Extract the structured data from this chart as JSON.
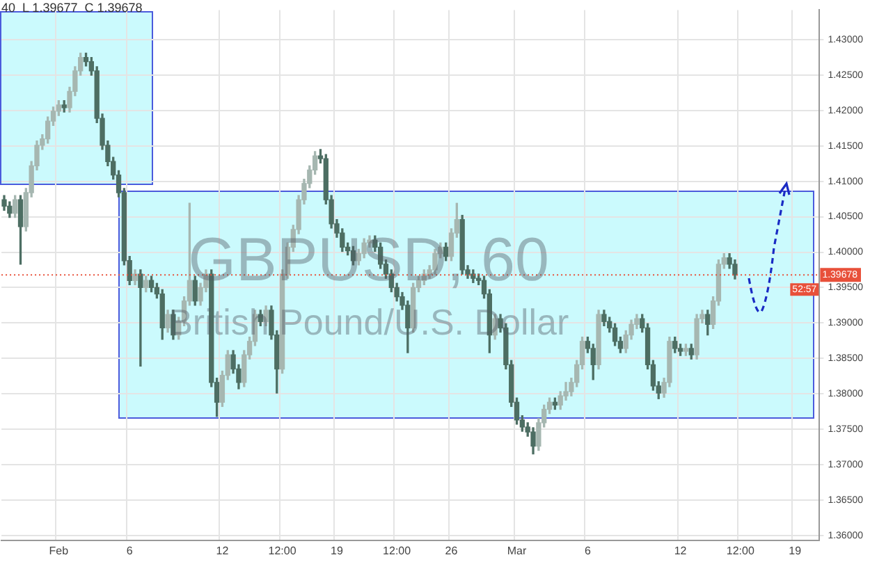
{
  "chart_data": {
    "type": "candlestick",
    "title": "GBPUSD, 60",
    "subtitle": "British Pound/U.S. Dollar",
    "categories": [
      null,
      null,
      null,
      null,
      null,
      null,
      null,
      null,
      null,
      null,
      "Feb",
      null,
      null,
      null,
      null,
      null,
      null,
      null,
      null,
      null,
      null,
      null,
      null,
      "6",
      null,
      null,
      null,
      null,
      null,
      null,
      null,
      null,
      null,
      null,
      null,
      null,
      null,
      null,
      null,
      null,
      "12",
      null,
      null,
      null,
      null,
      null,
      null,
      null,
      null,
      null,
      null,
      "12:00",
      null,
      null,
      null,
      null,
      null,
      null,
      null,
      null,
      null,
      "19",
      null,
      null,
      null,
      null,
      null,
      null,
      null,
      null,
      null,
      null,
      "12:00",
      null,
      null,
      null,
      null,
      null,
      null,
      null,
      null,
      null,
      "26",
      null,
      null,
      null,
      null,
      null,
      null,
      null,
      null,
      null,
      null,
      null,
      "Mar",
      null,
      null,
      null,
      null,
      null,
      null,
      null,
      null,
      null,
      null,
      null,
      null,
      "6",
      null,
      null,
      null,
      null,
      null,
      null,
      null,
      null,
      null,
      null,
      null,
      null,
      null,
      null,
      null,
      null,
      "12",
      null,
      null,
      null,
      null,
      null,
      null,
      null,
      null,
      null,
      null,
      "12:00",
      null,
      null,
      null,
      null,
      null,
      null,
      null,
      null,
      null,
      "19",
      null,
      null,
      null,
      null
    ],
    "colors": [
      "#4d6e63",
      "#4d6e63",
      "#a6b7b1",
      "#4d6e63",
      "#a6b7b1",
      "#a6b7b1",
      "#a6b7b1",
      "#a6b7b1",
      "#a6b7b1",
      "#a6b7b1",
      "#a6b7b1",
      "#4d6e63",
      "#a6b7b1",
      "#a6b7b1",
      "#a6b7b1",
      "#4d6e63",
      "#4d6e63",
      "#4d6e63",
      "#4d6e63",
      "#4d6e63",
      "#4d6e63",
      "#4d6e63",
      "#4d6e63",
      "#4d6e63",
      "#a6b7b1",
      "#4d6e63",
      "#a6b7b1",
      "#4d6e63",
      "#4d6e63",
      "#4d6e63",
      "#a6b7b1",
      "#4d6e63",
      "#a6b7b1",
      "#a6b7b1",
      "#a6b7b1",
      "#4d6e63",
      "#a6b7b1",
      "#a6b7b1",
      "#4d6e63",
      "#4d6e63",
      "#a6b7b1",
      "#a6b7b1",
      "#4d6e63",
      "#4d6e63",
      "#a6b7b1",
      "#a6b7b1",
      "#a6b7b1",
      "#4d6e63",
      "#a6b7b1",
      "#4d6e63",
      "#4d6e63",
      "#a6b7b1",
      "#a6b7b1",
      "#a6b7b1",
      "#a6b7b1",
      "#a6b7b1",
      "#a6b7b1",
      "#a6b7b1",
      "#4d6e63",
      "#4d6e63",
      "#4d6e63",
      "#4d6e63",
      "#4d6e63",
      "#4d6e63",
      "#4d6e63",
      "#a6b7b1",
      "#a6b7b1",
      "#a6b7b1",
      "#4d6e63",
      "#4d6e63",
      "#4d6e63",
      "#4d6e63",
      "#4d6e63",
      "#4d6e63",
      "#4d6e63",
      "#a6b7b1",
      "#a6b7b1",
      "#a6b7b1",
      "#a6b7b1",
      "#a6b7b1",
      "#a6b7b1",
      "#4d6e63",
      "#a6b7b1",
      "#a6b7b1",
      "#4d6e63",
      "#4d6e63",
      "#4d6e63",
      "#4d6e63",
      "#4d6e63",
      "#4d6e63",
      "#a6b7b1",
      "#4d6e63",
      "#4d6e63",
      "#4d6e63",
      "#4d6e63",
      "#4d6e63",
      "#4d6e63",
      "#4d6e63",
      "#a6b7b1",
      "#a6b7b1",
      "#a6b7b1",
      "#4d6e63",
      "#a6b7b1",
      "#a6b7b1",
      "#a6b7b1",
      "#a6b7b1",
      "#a6b7b1",
      "#4d6e63",
      "#4d6e63",
      "#a6b7b1",
      "#4d6e63",
      "#4d6e63",
      "#4d6e63",
      "#4d6e63",
      "#a6b7b1",
      "#a6b7b1",
      "#a6b7b1",
      "#4d6e63",
      "#4d6e63",
      "#4d6e63",
      "#4d6e63",
      "#a6b7b1",
      "#a6b7b1",
      "#4d6e63",
      "#4d6e63",
      "#a6b7b1",
      "#4d6e63",
      "#a6b7b1",
      "#a6b7b1",
      "#4d6e63",
      "#a6b7b1",
      "#a6b7b1",
      "#a6b7b1",
      "#4d6e63",
      "#4d6e63",
      null,
      null,
      null,
      null,
      null,
      null,
      null,
      null,
      null,
      null,
      null,
      null,
      null,
      null,
      null
    ],
    "ohlc": [
      [
        1.4074,
        1.408,
        1.4059,
        1.4065
      ],
      [
        1.4065,
        1.4071,
        1.4049,
        1.4055
      ],
      [
        1.4055,
        1.408,
        1.4049,
        1.4074
      ],
      [
        1.4074,
        1.408,
        1.3983,
        1.4036
      ],
      [
        1.4036,
        1.409,
        1.403,
        1.4084
      ],
      [
        1.4084,
        1.4128,
        1.4078,
        1.4122
      ],
      [
        1.4122,
        1.4157,
        1.4116,
        1.4151
      ],
      [
        1.4151,
        1.4166,
        1.4145,
        1.416
      ],
      [
        1.416,
        1.4191,
        1.4154,
        1.4185
      ],
      [
        1.4185,
        1.4205,
        1.4179,
        1.4199
      ],
      [
        1.4199,
        1.4214,
        1.4193,
        1.4208
      ],
      [
        1.4208,
        1.4214,
        1.4198,
        1.4204
      ],
      [
        1.4204,
        1.4233,
        1.4198,
        1.4227
      ],
      [
        1.4227,
        1.4262,
        1.4221,
        1.4256
      ],
      [
        1.4256,
        1.4281,
        1.425,
        1.4275
      ],
      [
        1.4275,
        1.4281,
        1.4263,
        1.4269
      ],
      [
        1.4269,
        1.4275,
        1.425,
        1.4256
      ],
      [
        1.4256,
        1.4262,
        1.4183,
        1.4189
      ],
      [
        1.4189,
        1.4195,
        1.4145,
        1.4151
      ],
      [
        1.4151,
        1.4157,
        1.4122,
        1.4128
      ],
      [
        1.4128,
        1.4134,
        1.4103,
        1.4109
      ],
      [
        1.4109,
        1.4115,
        1.4078,
        1.4084
      ],
      [
        1.4084,
        1.409,
        1.3982,
        1.3988
      ],
      [
        1.3988,
        1.3994,
        1.3954,
        1.396
      ],
      [
        1.396,
        1.3975,
        1.3954,
        1.3969
      ],
      [
        1.3969,
        1.3975,
        1.3839,
        1.395
      ],
      [
        1.395,
        1.3966,
        1.3944,
        1.396
      ],
      [
        1.396,
        1.3966,
        1.3944,
        1.395
      ],
      [
        1.395,
        1.3956,
        1.3935,
        1.3941
      ],
      [
        1.3941,
        1.3947,
        1.3877,
        1.3893
      ],
      [
        1.3893,
        1.3918,
        1.3887,
        1.3912
      ],
      [
        1.3912,
        1.3918,
        1.3877,
        1.3883
      ],
      [
        1.3883,
        1.3908,
        1.3877,
        1.3902
      ],
      [
        1.3902,
        1.3937,
        1.3896,
        1.3931
      ],
      [
        1.3931,
        1.4069,
        1.3925,
        1.396
      ],
      [
        1.396,
        1.3966,
        1.3925,
        1.3931
      ],
      [
        1.3931,
        1.3956,
        1.3925,
        1.395
      ],
      [
        1.395,
        1.3975,
        1.3944,
        1.3969
      ],
      [
        1.3969,
        1.3975,
        1.381,
        1.3816
      ],
      [
        1.3816,
        1.3822,
        1.3768,
        1.3788
      ],
      [
        1.3788,
        1.3832,
        1.3782,
        1.3826
      ],
      [
        1.3826,
        1.3861,
        1.382,
        1.3855
      ],
      [
        1.3855,
        1.3861,
        1.3829,
        1.3835
      ],
      [
        1.3835,
        1.3841,
        1.3807,
        1.3816
      ],
      [
        1.3816,
        1.3861,
        1.381,
        1.3855
      ],
      [
        1.3855,
        1.388,
        1.3849,
        1.3874
      ],
      [
        1.3874,
        1.3918,
        1.3868,
        1.3912
      ],
      [
        1.3912,
        1.3918,
        1.3896,
        1.3902
      ],
      [
        1.3902,
        1.3924,
        1.3896,
        1.3918
      ],
      [
        1.3918,
        1.3924,
        1.3877,
        1.3883
      ],
      [
        1.3883,
        1.3889,
        1.3801,
        1.3835
      ],
      [
        1.3835,
        1.3975,
        1.3829,
        1.3969
      ],
      [
        1.3969,
        1.4013,
        1.3963,
        1.4007
      ],
      [
        1.4007,
        1.4038,
        1.4001,
        1.4032
      ],
      [
        1.4032,
        1.408,
        1.4026,
        1.4074
      ],
      [
        1.4074,
        1.4103,
        1.4068,
        1.4097
      ],
      [
        1.4097,
        1.4122,
        1.4091,
        1.4116
      ],
      [
        1.4116,
        1.4142,
        1.411,
        1.4136
      ],
      [
        1.4136,
        1.4145,
        1.4126,
        1.4132
      ],
      [
        1.4132,
        1.4138,
        1.4068,
        1.4074
      ],
      [
        1.4074,
        1.408,
        1.4034,
        1.404
      ],
      [
        1.404,
        1.4046,
        1.4021,
        1.4027
      ],
      [
        1.4027,
        1.4033,
        1.4001,
        1.4007
      ],
      [
        1.4007,
        1.4013,
        1.3996,
        1.4002
      ],
      [
        1.4002,
        1.4008,
        1.3982,
        1.3988
      ],
      [
        1.3988,
        1.4004,
        1.3982,
        1.3998
      ],
      [
        1.3998,
        1.4019,
        1.3992,
        1.4013
      ],
      [
        1.4013,
        1.4023,
        1.4007,
        1.4017
      ],
      [
        1.4017,
        1.4023,
        1.4001,
        1.4007
      ],
      [
        1.4007,
        1.4013,
        1.3977,
        1.3983
      ],
      [
        1.3983,
        1.3989,
        1.3963,
        1.3969
      ],
      [
        1.3969,
        1.3975,
        1.3944,
        1.395
      ],
      [
        1.395,
        1.3956,
        1.3931,
        1.3937
      ],
      [
        1.3937,
        1.3943,
        1.3919,
        1.3925
      ],
      [
        1.3925,
        1.3931,
        1.3858,
        1.3893
      ],
      [
        1.3893,
        1.3956,
        1.3887,
        1.395
      ],
      [
        1.395,
        1.3966,
        1.3944,
        1.396
      ],
      [
        1.396,
        1.3975,
        1.3954,
        1.3969
      ],
      [
        1.3969,
        1.3981,
        1.3963,
        1.3975
      ],
      [
        1.3975,
        1.4004,
        1.3969,
        1.3998
      ],
      [
        1.3998,
        1.4013,
        1.3992,
        1.4007
      ],
      [
        1.4007,
        1.4013,
        1.3988,
        1.3994
      ],
      [
        1.3994,
        1.4033,
        1.3988,
        1.4027
      ],
      [
        1.4027,
        1.4069,
        1.4021,
        1.4046
      ],
      [
        1.4046,
        1.4052,
        1.3969,
        1.3975
      ],
      [
        1.3975,
        1.3981,
        1.3963,
        1.3969
      ],
      [
        1.3969,
        1.3975,
        1.3957,
        1.3963
      ],
      [
        1.3963,
        1.3969,
        1.3954,
        1.396
      ],
      [
        1.396,
        1.3966,
        1.3935,
        1.3941
      ],
      [
        1.3941,
        1.3947,
        1.3858,
        1.3883
      ],
      [
        1.3883,
        1.3912,
        1.3877,
        1.3906
      ],
      [
        1.3906,
        1.3912,
        1.3887,
        1.3893
      ],
      [
        1.3893,
        1.3899,
        1.3835,
        1.3841
      ],
      [
        1.3841,
        1.3847,
        1.3782,
        1.3788
      ],
      [
        1.3788,
        1.3794,
        1.3757,
        1.3763
      ],
      [
        1.3763,
        1.3769,
        1.3747,
        1.3753
      ],
      [
        1.3753,
        1.3759,
        1.374,
        1.3746
      ],
      [
        1.3746,
        1.3752,
        1.3715,
        1.3726
      ],
      [
        1.3726,
        1.3765,
        1.372,
        1.3759
      ],
      [
        1.3759,
        1.3784,
        1.3753,
        1.3778
      ],
      [
        1.3778,
        1.3794,
        1.3772,
        1.3788
      ],
      [
        1.3788,
        1.3794,
        1.3778,
        1.3784
      ],
      [
        1.3784,
        1.3803,
        1.3778,
        1.3797
      ],
      [
        1.3797,
        1.3816,
        1.3791,
        1.3803
      ],
      [
        1.3803,
        1.3822,
        1.3797,
        1.3816
      ],
      [
        1.3816,
        1.3847,
        1.381,
        1.3841
      ],
      [
        1.3841,
        1.388,
        1.3835,
        1.3874
      ],
      [
        1.3874,
        1.388,
        1.3858,
        1.3864
      ],
      [
        1.3864,
        1.387,
        1.382,
        1.3841
      ],
      [
        1.3841,
        1.3918,
        1.3835,
        1.3912
      ],
      [
        1.3912,
        1.3918,
        1.3896,
        1.3902
      ],
      [
        1.3902,
        1.3908,
        1.3887,
        1.3893
      ],
      [
        1.3893,
        1.3899,
        1.3868,
        1.3874
      ],
      [
        1.3874,
        1.388,
        1.3858,
        1.3864
      ],
      [
        1.3864,
        1.3889,
        1.3858,
        1.3883
      ],
      [
        1.3883,
        1.3904,
        1.3877,
        1.3898
      ],
      [
        1.3898,
        1.3912,
        1.3892,
        1.3906
      ],
      [
        1.3906,
        1.3912,
        1.3887,
        1.3893
      ],
      [
        1.3893,
        1.3899,
        1.3835,
        1.3841
      ],
      [
        1.3841,
        1.3847,
        1.3805,
        1.3811
      ],
      [
        1.3811,
        1.3817,
        1.3793,
        1.3801
      ],
      [
        1.3801,
        1.3822,
        1.3795,
        1.3816
      ],
      [
        1.3816,
        1.388,
        1.381,
        1.3874
      ],
      [
        1.3874,
        1.388,
        1.3858,
        1.3864
      ],
      [
        1.3864,
        1.387,
        1.3854,
        1.386
      ],
      [
        1.386,
        1.387,
        1.3854,
        1.3864
      ],
      [
        1.3864,
        1.387,
        1.3849,
        1.3855
      ],
      [
        1.3855,
        1.3912,
        1.3849,
        1.3906
      ],
      [
        1.3906,
        1.3918,
        1.39,
        1.3912
      ],
      [
        1.3912,
        1.3918,
        1.3883,
        1.3898
      ],
      [
        1.3898,
        1.3937,
        1.3892,
        1.3931
      ],
      [
        1.3931,
        1.3989,
        1.3925,
        1.3983
      ],
      [
        1.3983,
        1.3998,
        1.3977,
        1.3992
      ],
      [
        1.3992,
        1.3998,
        1.3977,
        1.3983
      ],
      [
        1.3983,
        1.3989,
        1.3962,
        1.3968
      ],
      null,
      null,
      null,
      null,
      null,
      null,
      null,
      null,
      null,
      null,
      null,
      null,
      null,
      null,
      null
    ],
    "ylim": [
      1.3593,
      1.4342
    ],
    "yticks": [
      {
        "value": 1.36,
        "label": "1.36000"
      },
      {
        "value": 1.365,
        "label": "1.36500"
      },
      {
        "value": 1.37,
        "label": "1.37000"
      },
      {
        "value": 1.375,
        "label": "1.37500"
      },
      {
        "value": 1.38,
        "label": "1.38000"
      },
      {
        "value": 1.385,
        "label": "1.38500"
      },
      {
        "value": 1.39,
        "label": "1.39000"
      },
      {
        "value": 1.395,
        "label": "1.39500"
      },
      {
        "value": 1.4,
        "label": "1.40000"
      },
      {
        "value": 1.405,
        "label": "1.40500"
      },
      {
        "value": 1.41,
        "label": "1.41000"
      },
      {
        "value": 1.415,
        "label": "1.41500"
      },
      {
        "value": 1.42,
        "label": "1.42000"
      },
      {
        "value": 1.425,
        "label": "1.42500"
      },
      {
        "value": 1.43,
        "label": "1.43000"
      }
    ],
    "ref_lines": [
      {
        "axis": "y",
        "value": 1.39678,
        "label": "1.39678",
        "color": "#e8503a",
        "line_style": "dotted"
      }
    ],
    "annotations": [
      "40  L 1.39677  C 1.39678",
      "52:57"
    ],
    "grid": true,
    "legend": false
  }
}
